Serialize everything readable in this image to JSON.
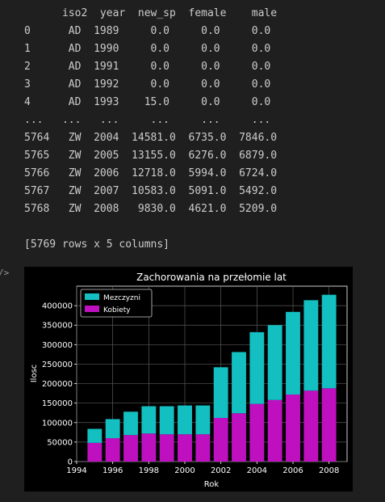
{
  "dataframe_output": {
    "header": "      iso2  year  new_sp  female    male",
    "rows": [
      "0      AD  1989     0.0     0.0     0.0",
      "1      AD  1990     0.0     0.0     0.0",
      "2      AD  1991     0.0     0.0     0.0",
      "3      AD  1992     0.0     0.0     0.0",
      "4      AD  1993    15.0     0.0     0.0",
      "...   ...   ...     ...     ...     ...",
      "5764   ZW  2004  14581.0  6735.0  7846.0",
      "5765   ZW  2005  13155.0  6276.0  6879.0",
      "5766   ZW  2006  12718.0  5994.0  6724.0",
      "5767   ZW  2007  10583.0  5091.0  5492.0",
      "5768   ZW  2008   9830.0  4621.0  5209.0"
    ],
    "shape_note": "[5769 rows x 5 columns]"
  },
  "cell_prompt_glyph": "/>",
  "colors": {
    "men": "#13bfc0",
    "women": "#bf10c0",
    "plot_bg": "#000000",
    "grid": "#5a5a5a",
    "text": "#ffffff"
  },
  "chart_data": {
    "type": "bar",
    "stacked": true,
    "title": "Zachorowania na przełomie lat",
    "xlabel": "Rok",
    "ylabel": "Ilosc",
    "xlim": [
      1994,
      2009
    ],
    "ylim": [
      0,
      450000
    ],
    "xticks": [
      1994,
      1996,
      1998,
      2000,
      2002,
      2004,
      2006,
      2008
    ],
    "yticks": [
      0,
      50000,
      100000,
      150000,
      200000,
      250000,
      300000,
      350000,
      400000
    ],
    "grid": true,
    "legend_position": "top-left",
    "x": [
      1995,
      1996,
      1997,
      1998,
      1999,
      2000,
      2001,
      2002,
      2003,
      2004,
      2005,
      2006,
      2007,
      2008
    ],
    "series": [
      {
        "name": "Kobiety",
        "values": [
          48000,
          60000,
          68000,
          72000,
          70000,
          70000,
          70000,
          112000,
          124000,
          148000,
          158000,
          172000,
          182000,
          188000
        ]
      },
      {
        "name": "Mezczyzni",
        "values": [
          36000,
          49000,
          60000,
          70000,
          72000,
          74000,
          74000,
          130000,
          157000,
          184000,
          192000,
          212000,
          232000,
          240000
        ]
      }
    ]
  }
}
